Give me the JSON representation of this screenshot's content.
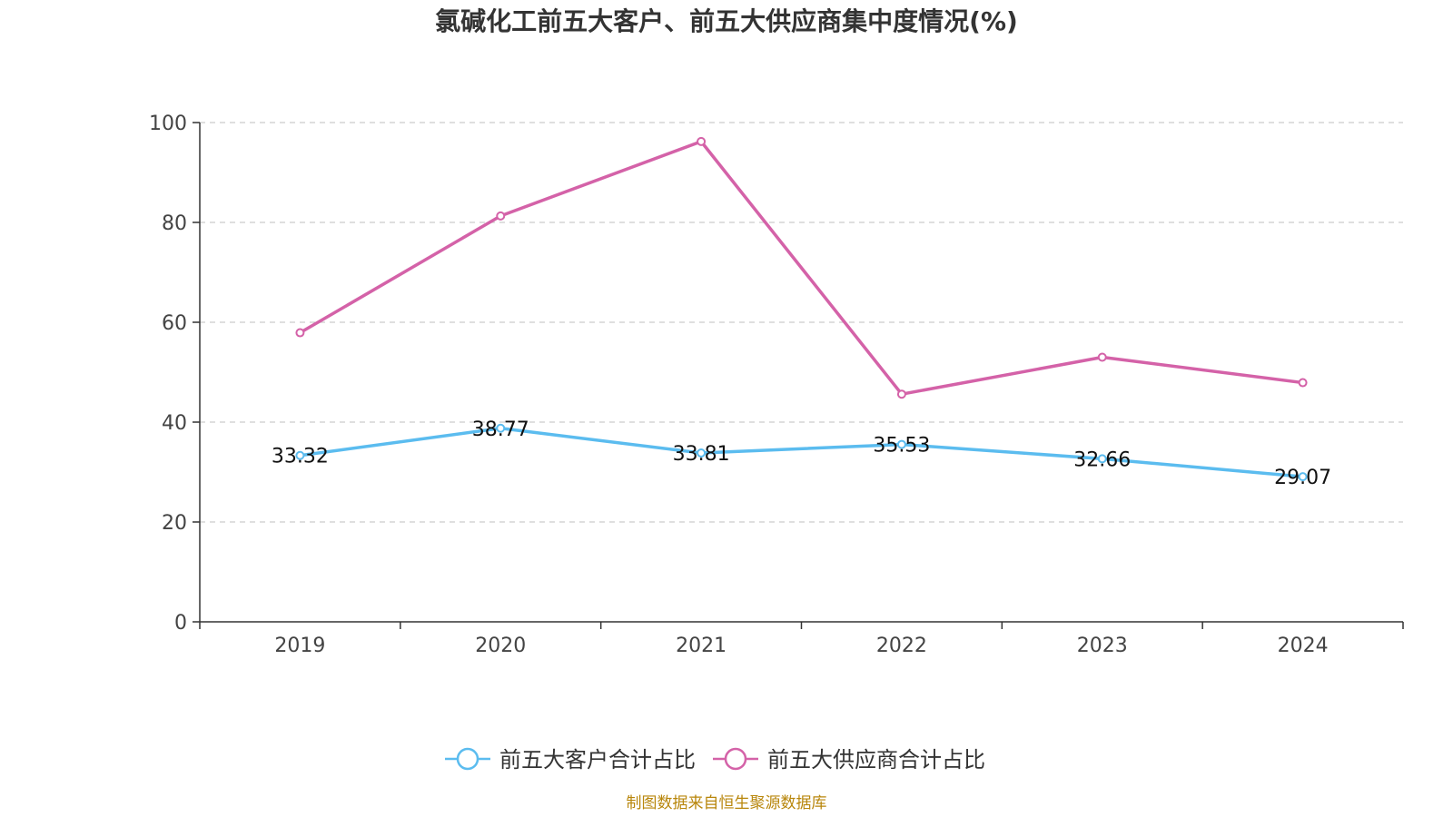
{
  "chart_data": {
    "type": "line",
    "title": "氯碱化工前五大客户、前五大供应商集中度情况(%)",
    "categories": [
      "2019",
      "2020",
      "2021",
      "2022",
      "2023",
      "2024"
    ],
    "series": [
      {
        "name": "前五大客户合计占比",
        "values": [
          33.32,
          38.77,
          33.81,
          35.53,
          32.66,
          29.07
        ],
        "labels": [
          "33.32",
          "38.77",
          "33.81",
          "35.53",
          "32.66",
          "29.07"
        ],
        "show_labels": true,
        "color": "#5bbcef"
      },
      {
        "name": "前五大供应商合计占比",
        "values": [
          57.9,
          81.3,
          96.2,
          45.6,
          53.0,
          47.9
        ],
        "show_labels": false,
        "color": "#d462a8"
      }
    ],
    "ylim": [
      0,
      100
    ],
    "yticks": [
      0,
      20,
      40,
      60,
      80,
      100
    ],
    "grid": true,
    "legend_position": "bottom"
  },
  "source_text": "制图数据来自恒生聚源数据库"
}
